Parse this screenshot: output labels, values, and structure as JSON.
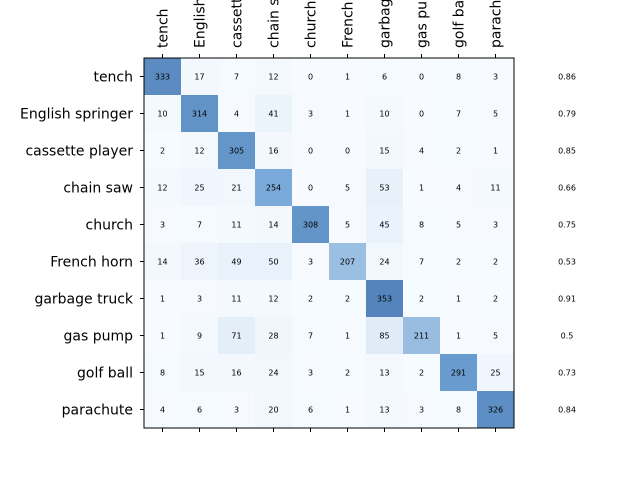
{
  "chart_data": {
    "type": "heatmap",
    "title": "",
    "xlabel": "",
    "ylabel": "",
    "row_labels": [
      "tench",
      "English springer",
      "cassette player",
      "chain saw",
      "church",
      "French horn",
      "garbage truck",
      "gas pump",
      "golf ball",
      "parachute"
    ],
    "col_labels": [
      "tench",
      "English",
      "cassette",
      "chain s",
      "church",
      "French",
      "garbag",
      "gas pum",
      "golf ba",
      "parachu"
    ],
    "matrix": [
      [
        333,
        17,
        7,
        12,
        0,
        1,
        6,
        0,
        8,
        3
      ],
      [
        10,
        314,
        4,
        41,
        3,
        1,
        10,
        0,
        7,
        5
      ],
      [
        2,
        12,
        305,
        16,
        0,
        0,
        15,
        4,
        2,
        1
      ],
      [
        12,
        25,
        21,
        254,
        0,
        5,
        53,
        1,
        4,
        11
      ],
      [
        3,
        7,
        11,
        14,
        308,
        5,
        45,
        8,
        5,
        3
      ],
      [
        14,
        36,
        49,
        50,
        3,
        207,
        24,
        7,
        2,
        2
      ],
      [
        1,
        3,
        11,
        12,
        2,
        2,
        353,
        2,
        1,
        2
      ],
      [
        1,
        9,
        71,
        28,
        7,
        1,
        85,
        211,
        1,
        5
      ],
      [
        8,
        15,
        16,
        24,
        3,
        2,
        13,
        2,
        291,
        25
      ],
      [
        4,
        6,
        3,
        20,
        6,
        1,
        13,
        3,
        8,
        326
      ]
    ],
    "row_accuracy": [
      "0.86",
      "0.79",
      "0.85",
      "0.66",
      "0.75",
      "0.53",
      "0.91",
      "0.5",
      "0.73",
      "0.84"
    ],
    "colormap": "Blues",
    "color_scale_max": 353,
    "grid": false,
    "legend": "none"
  }
}
